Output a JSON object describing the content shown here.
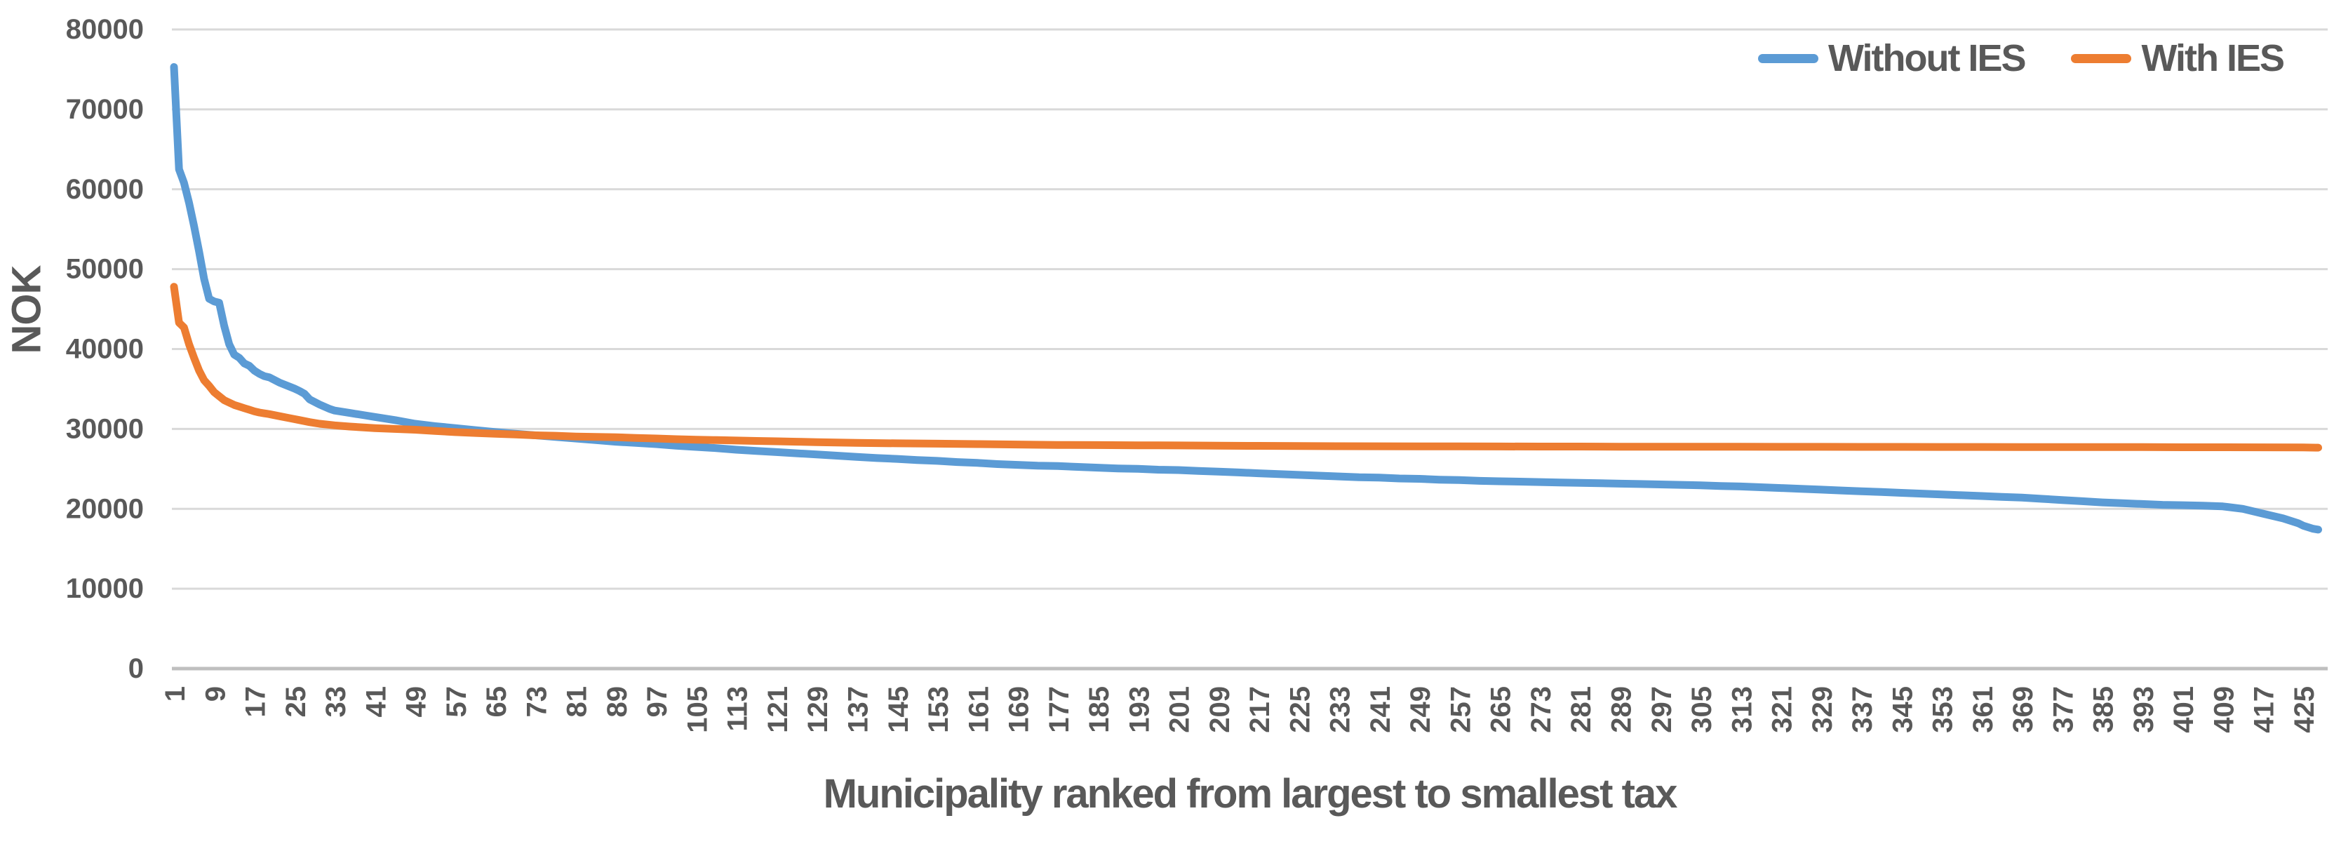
{
  "chart_data": {
    "type": "line",
    "title": "",
    "x_axis": {
      "title": "Municipality ranked from largest to smallest tax",
      "tick_start": 1,
      "tick_step": 8,
      "tick_end": 425,
      "range": [
        1,
        428
      ]
    },
    "y_axis": {
      "title": "NOK",
      "min": 0,
      "max": 80000,
      "tick_step": 10000
    },
    "grid": true,
    "legend_position": "top-right",
    "series": [
      {
        "name": "Without IES",
        "color": "#5B9BD5",
        "points": [
          [
            1,
            75300
          ],
          [
            2,
            62500
          ],
          [
            3,
            60800
          ],
          [
            4,
            58300
          ],
          [
            5,
            55400
          ],
          [
            6,
            52200
          ],
          [
            7,
            48800
          ],
          [
            8,
            46300
          ],
          [
            9,
            45950
          ],
          [
            10,
            45800
          ],
          [
            11,
            42900
          ],
          [
            12,
            40600
          ],
          [
            13,
            39300
          ],
          [
            14,
            38900
          ],
          [
            15,
            38200
          ],
          [
            16,
            37900
          ],
          [
            17,
            37300
          ],
          [
            18,
            36900
          ],
          [
            19,
            36600
          ],
          [
            20,
            36450
          ],
          [
            22,
            35800
          ],
          [
            24,
            35300
          ],
          [
            25,
            35050
          ],
          [
            26,
            34750
          ],
          [
            27,
            34400
          ],
          [
            28,
            33700
          ],
          [
            30,
            33050
          ],
          [
            32,
            32500
          ],
          [
            33,
            32300
          ],
          [
            36,
            32000
          ],
          [
            39,
            31700
          ],
          [
            41,
            31500
          ],
          [
            45,
            31100
          ],
          [
            49,
            30650
          ],
          [
            53,
            30350
          ],
          [
            57,
            30100
          ],
          [
            61,
            29850
          ],
          [
            65,
            29600
          ],
          [
            69,
            29400
          ],
          [
            73,
            29200
          ],
          [
            77,
            29000
          ],
          [
            81,
            28800
          ],
          [
            85,
            28600
          ],
          [
            89,
            28400
          ],
          [
            93,
            28250
          ],
          [
            97,
            28100
          ],
          [
            101,
            27900
          ],
          [
            105,
            27750
          ],
          [
            109,
            27600
          ],
          [
            113,
            27400
          ],
          [
            117,
            27250
          ],
          [
            121,
            27100
          ],
          [
            125,
            26950
          ],
          [
            129,
            26800
          ],
          [
            133,
            26650
          ],
          [
            137,
            26500
          ],
          [
            141,
            26350
          ],
          [
            145,
            26250
          ],
          [
            149,
            26100
          ],
          [
            153,
            26000
          ],
          [
            157,
            25850
          ],
          [
            161,
            25750
          ],
          [
            165,
            25600
          ],
          [
            169,
            25500
          ],
          [
            173,
            25400
          ],
          [
            177,
            25350
          ],
          [
            181,
            25250
          ],
          [
            185,
            25150
          ],
          [
            189,
            25050
          ],
          [
            193,
            25000
          ],
          [
            197,
            24900
          ],
          [
            201,
            24850
          ],
          [
            205,
            24750
          ],
          [
            209,
            24650
          ],
          [
            213,
            24550
          ],
          [
            217,
            24450
          ],
          [
            221,
            24350
          ],
          [
            225,
            24250
          ],
          [
            229,
            24150
          ],
          [
            233,
            24050
          ],
          [
            237,
            23950
          ],
          [
            241,
            23900
          ],
          [
            245,
            23800
          ],
          [
            249,
            23750
          ],
          [
            253,
            23650
          ],
          [
            257,
            23600
          ],
          [
            261,
            23500
          ],
          [
            265,
            23450
          ],
          [
            269,
            23400
          ],
          [
            273,
            23350
          ],
          [
            277,
            23300
          ],
          [
            281,
            23250
          ],
          [
            285,
            23200
          ],
          [
            289,
            23150
          ],
          [
            293,
            23100
          ],
          [
            297,
            23050
          ],
          [
            301,
            23000
          ],
          [
            305,
            22950
          ],
          [
            309,
            22850
          ],
          [
            313,
            22800
          ],
          [
            317,
            22700
          ],
          [
            321,
            22600
          ],
          [
            325,
            22500
          ],
          [
            329,
            22400
          ],
          [
            333,
            22300
          ],
          [
            337,
            22200
          ],
          [
            341,
            22100
          ],
          [
            345,
            22000
          ],
          [
            349,
            21900
          ],
          [
            353,
            21800
          ],
          [
            357,
            21700
          ],
          [
            361,
            21600
          ],
          [
            365,
            21500
          ],
          [
            369,
            21400
          ],
          [
            373,
            21250
          ],
          [
            377,
            21100
          ],
          [
            381,
            20950
          ],
          [
            385,
            20800
          ],
          [
            389,
            20700
          ],
          [
            393,
            20600
          ],
          [
            397,
            20500
          ],
          [
            401,
            20450
          ],
          [
            405,
            20400
          ],
          [
            409,
            20300
          ],
          [
            413,
            20000
          ],
          [
            417,
            19400
          ],
          [
            421,
            18800
          ],
          [
            424,
            18200
          ],
          [
            425,
            17900
          ],
          [
            427,
            17500
          ],
          [
            428,
            17400
          ]
        ]
      },
      {
        "name": "With IES",
        "color": "#ED7D31",
        "points": [
          [
            1,
            47800
          ],
          [
            2,
            43300
          ],
          [
            3,
            42700
          ],
          [
            4,
            40600
          ],
          [
            5,
            38900
          ],
          [
            6,
            37300
          ],
          [
            7,
            36100
          ],
          [
            8,
            35400
          ],
          [
            9,
            34600
          ],
          [
            10,
            34100
          ],
          [
            11,
            33600
          ],
          [
            12,
            33300
          ],
          [
            13,
            33000
          ],
          [
            14,
            32800
          ],
          [
            15,
            32600
          ],
          [
            16,
            32400
          ],
          [
            17,
            32200
          ],
          [
            18,
            32050
          ],
          [
            19,
            31950
          ],
          [
            20,
            31850
          ],
          [
            22,
            31600
          ],
          [
            24,
            31350
          ],
          [
            26,
            31100
          ],
          [
            28,
            30850
          ],
          [
            30,
            30650
          ],
          [
            33,
            30450
          ],
          [
            36,
            30300
          ],
          [
            41,
            30100
          ],
          [
            45,
            30000
          ],
          [
            49,
            29900
          ],
          [
            53,
            29750
          ],
          [
            57,
            29600
          ],
          [
            61,
            29500
          ],
          [
            65,
            29400
          ],
          [
            69,
            29300
          ],
          [
            73,
            29200
          ],
          [
            77,
            29150
          ],
          [
            81,
            29050
          ],
          [
            85,
            29000
          ],
          [
            89,
            28950
          ],
          [
            93,
            28870
          ],
          [
            97,
            28800
          ],
          [
            101,
            28720
          ],
          [
            105,
            28650
          ],
          [
            109,
            28600
          ],
          [
            113,
            28550
          ],
          [
            117,
            28500
          ],
          [
            121,
            28450
          ],
          [
            125,
            28400
          ],
          [
            129,
            28350
          ],
          [
            137,
            28250
          ],
          [
            145,
            28200
          ],
          [
            153,
            28150
          ],
          [
            161,
            28100
          ],
          [
            169,
            28050
          ],
          [
            177,
            28000
          ],
          [
            185,
            27980
          ],
          [
            193,
            27950
          ],
          [
            201,
            27930
          ],
          [
            209,
            27900
          ],
          [
            217,
            27880
          ],
          [
            225,
            27860
          ],
          [
            233,
            27840
          ],
          [
            241,
            27830
          ],
          [
            249,
            27820
          ],
          [
            257,
            27810
          ],
          [
            265,
            27800
          ],
          [
            273,
            27790
          ],
          [
            281,
            27790
          ],
          [
            289,
            27780
          ],
          [
            297,
            27780
          ],
          [
            305,
            27770
          ],
          [
            313,
            27770
          ],
          [
            321,
            27760
          ],
          [
            329,
            27760
          ],
          [
            337,
            27750
          ],
          [
            345,
            27750
          ],
          [
            353,
            27740
          ],
          [
            361,
            27740
          ],
          [
            369,
            27730
          ],
          [
            377,
            27730
          ],
          [
            385,
            27720
          ],
          [
            393,
            27720
          ],
          [
            401,
            27710
          ],
          [
            409,
            27710
          ],
          [
            417,
            27700
          ],
          [
            425,
            27690
          ],
          [
            428,
            27650
          ]
        ]
      }
    ]
  },
  "colors": {
    "text": "#595959",
    "gridline": "#D9D9D9",
    "axis_line": "#BFBFBF",
    "background": "#FFFFFF"
  }
}
